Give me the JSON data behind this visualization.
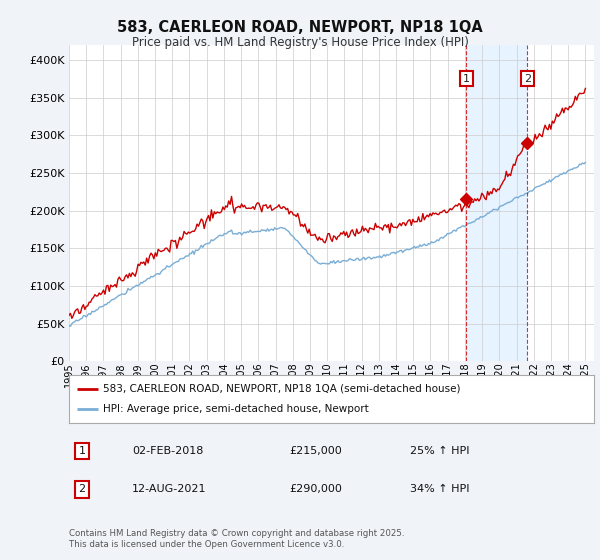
{
  "title_line1": "583, CAERLEON ROAD, NEWPORT, NP18 1QA",
  "title_line2": "Price paid vs. HM Land Registry's House Price Index (HPI)",
  "background_color": "#f0f4f8",
  "plot_bg_color": "#ffffff",
  "red_color": "#cc0000",
  "blue_color": "#7aaed6",
  "shade_color": "#ddeeff",
  "marker1_year": 2018.08,
  "marker2_year": 2021.62,
  "marker1_value": 215000,
  "marker2_value": 290000,
  "ylim_min": 0,
  "ylim_max": 420000,
  "legend_label1": "583, CAERLEON ROAD, NEWPORT, NP18 1QA (semi-detached house)",
  "legend_label2": "HPI: Average price, semi-detached house, Newport",
  "note1_label": "1",
  "note1_date": "02-FEB-2018",
  "note1_price": "£215,000",
  "note1_hpi": "25% ↑ HPI",
  "note2_label": "2",
  "note2_date": "12-AUG-2021",
  "note2_price": "£290,000",
  "note2_hpi": "34% ↑ HPI",
  "footer": "Contains HM Land Registry data © Crown copyright and database right 2025.\nThis data is licensed under the Open Government Licence v3.0."
}
